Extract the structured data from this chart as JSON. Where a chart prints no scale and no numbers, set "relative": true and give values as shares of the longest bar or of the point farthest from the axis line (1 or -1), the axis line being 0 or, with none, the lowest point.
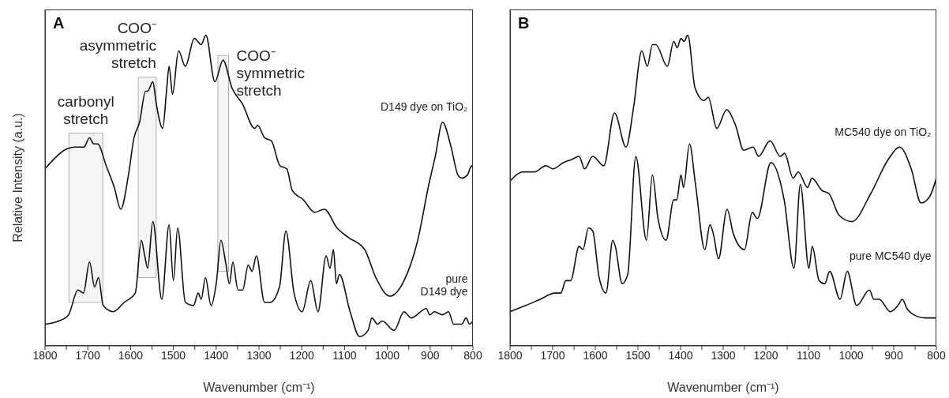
{
  "chart_data": [
    {
      "type": "line",
      "xlabel": "Wavenumber (cm⁻¹)",
      "ylabel": "Relative Intensity (a.u.)",
      "relative": true,
      "xlim": [
        1800,
        800
      ],
      "xticks": [
        1800,
        {
          "value": 1750,
          "label": null
        },
        1700,
        {
          "value": 1650,
          "label": null
        },
        1600,
        {
          "value": 1550,
          "label": null
        },
        1500,
        {
          "value": 1450,
          "label": null
        },
        1400,
        {
          "value": 1350,
          "label": null
        },
        1300,
        {
          "value": 1250,
          "label": null
        },
        1200,
        {
          "value": 1150,
          "label": null
        },
        1100,
        {
          "value": 1050,
          "label": null
        },
        1000,
        {
          "value": 950,
          "label": null
        },
        900,
        {
          "value": 850,
          "label": null
        },
        800
      ],
      "grid": false,
      "legend": false,
      "marker": "none",
      "line_style": "solid",
      "bands": [
        {
          "axis": "x",
          "from": 1744,
          "to": 1665,
          "label": "carbonyl\nstretch",
          "color": "#b0b0b0"
        },
        {
          "axis": "x",
          "from": 1582,
          "to": 1540,
          "label": "COO⁻\nasymmetric\nstretch",
          "color": "#b0b0b0"
        },
        {
          "axis": "x",
          "from": 1396,
          "to": 1371,
          "label": "COO⁻\nsymmetric\nstretch",
          "color": "#b0b0b0"
        }
      ],
      "annotations": [
        "A"
      ],
      "series": [
        {
          "name": "D149 dye on TiO₂",
          "color": "#111111",
          "x": [
            1800,
            1787,
            1755,
            1729,
            1709,
            1696,
            1686,
            1677,
            1657,
            1638,
            1623,
            1605,
            1592,
            1579,
            1565,
            1560,
            1548,
            1540,
            1525,
            1516,
            1510,
            1502,
            1488,
            1472,
            1451,
            1435,
            1424,
            1403,
            1384,
            1363,
            1339,
            1310,
            1303,
            1287,
            1271,
            1251,
            1235,
            1222,
            1196,
            1170,
            1147,
            1118,
            1092,
            1053,
            1027,
            994,
            961,
            929,
            903,
            888,
            871,
            851,
            835,
            826,
            813,
            803,
            800
          ],
          "values": [
            0.57,
            0.59,
            0.63,
            0.64,
            0.64,
            0.67,
            0.65,
            0.65,
            0.58,
            0.51,
            0.44,
            0.55,
            0.67,
            0.72,
            0.82,
            0.82,
            0.85,
            0.78,
            0.7,
            0.82,
            0.9,
            0.81,
            0.95,
            0.9,
            0.99,
            0.97,
            1.0,
            0.85,
            0.92,
            0.83,
            0.78,
            0.7,
            0.71,
            0.67,
            0.66,
            0.58,
            0.57,
            0.5,
            0.47,
            0.43,
            0.44,
            0.38,
            0.35,
            0.31,
            0.22,
            0.16,
            0.21,
            0.34,
            0.52,
            0.61,
            0.72,
            0.64,
            0.55,
            0.54,
            0.55,
            0.58,
            0.57
          ]
        },
        {
          "name": "pure\nD149 dye",
          "color": "#111111",
          "x": [
            1800,
            1768,
            1745,
            1723,
            1710,
            1696,
            1684,
            1675,
            1664,
            1641,
            1615,
            1589,
            1575,
            1567,
            1560,
            1548,
            1527,
            1510,
            1500,
            1490,
            1472,
            1453,
            1442,
            1435,
            1425,
            1412,
            1399,
            1389,
            1378,
            1369,
            1361,
            1349,
            1338,
            1325,
            1316,
            1306,
            1287,
            1274,
            1252,
            1237,
            1218,
            1199,
            1179,
            1162,
            1143,
            1134,
            1126,
            1119,
            1112,
            1087,
            1065,
            1045,
            1036,
            1023,
            1012,
            984,
            961,
            944,
            909,
            901,
            890,
            871,
            857,
            845,
            826,
            816,
            808,
            800
          ],
          "values": [
            0.07,
            0.08,
            0.1,
            0.18,
            0.17,
            0.27,
            0.19,
            0.22,
            0.13,
            0.11,
            0.14,
            0.17,
            0.34,
            0.29,
            0.25,
            0.4,
            0.15,
            0.39,
            0.21,
            0.38,
            0.14,
            0.13,
            0.17,
            0.15,
            0.22,
            0.13,
            0.21,
            0.34,
            0.27,
            0.2,
            0.27,
            0.18,
            0.18,
            0.26,
            0.24,
            0.29,
            0.14,
            0.14,
            0.19,
            0.37,
            0.17,
            0.11,
            0.21,
            0.11,
            0.29,
            0.25,
            0.31,
            0.2,
            0.23,
            0.11,
            0.03,
            0.05,
            0.09,
            0.07,
            0.08,
            0.05,
            0.11,
            0.09,
            0.12,
            0.1,
            0.11,
            0.1,
            0.11,
            0.07,
            0.07,
            0.09,
            0.07,
            0.08
          ]
        }
      ]
    },
    {
      "type": "line",
      "xlabel": "Wavenumber (cm⁻¹)",
      "relative": true,
      "xlim": [
        1800,
        800
      ],
      "xticks": [
        1800,
        {
          "value": 1750,
          "label": null
        },
        1700,
        {
          "value": 1650,
          "label": null
        },
        1600,
        {
          "value": 1550,
          "label": null
        },
        1500,
        {
          "value": 1450,
          "label": null
        },
        1400,
        {
          "value": 1350,
          "label": null
        },
        1300,
        {
          "value": 1250,
          "label": null
        },
        1200,
        {
          "value": 1150,
          "label": null
        },
        1100,
        {
          "value": 1050,
          "label": null
        },
        1000,
        {
          "value": 950,
          "label": null
        },
        900,
        {
          "value": 850,
          "label": null
        },
        800
      ],
      "grid": false,
      "legend": false,
      "marker": "none",
      "line_style": "solid",
      "annotations": [
        "B"
      ],
      "series": [
        {
          "name": "MC540 dye on TiO₂",
          "color": "#111111",
          "x": [
            1800,
            1770,
            1743,
            1716,
            1699,
            1675,
            1655,
            1638,
            1625,
            1606,
            1580,
            1555,
            1528,
            1510,
            1491,
            1478,
            1466,
            1458,
            1431,
            1416,
            1408,
            1399,
            1392,
            1383,
            1366,
            1345,
            1335,
            1315,
            1292,
            1271,
            1252,
            1230,
            1217,
            1190,
            1166,
            1156,
            1136,
            1124,
            1102,
            1092,
            1068,
            1052,
            1028,
            998,
            954,
            913,
            886,
            859,
            836,
            816,
            800
          ],
          "values": [
            0.53,
            0.56,
            0.56,
            0.58,
            0.57,
            0.59,
            0.6,
            0.61,
            0.57,
            0.61,
            0.58,
            0.75,
            0.64,
            0.77,
            0.95,
            0.9,
            0.97,
            0.97,
            0.9,
            0.98,
            0.96,
            0.99,
            0.98,
            1.0,
            0.83,
            0.79,
            0.8,
            0.7,
            0.76,
            0.71,
            0.63,
            0.64,
            0.61,
            0.66,
            0.61,
            0.62,
            0.54,
            0.56,
            0.51,
            0.54,
            0.5,
            0.49,
            0.42,
            0.4,
            0.49,
            0.6,
            0.64,
            0.57,
            0.46,
            0.48,
            0.54
          ]
        },
        {
          "name": "pure MC540 dye",
          "color": "#111111",
          "x": [
            1800,
            1763,
            1729,
            1695,
            1681,
            1669,
            1658,
            1638,
            1629,
            1616,
            1606,
            1591,
            1575,
            1559,
            1553,
            1537,
            1524,
            1505,
            1480,
            1466,
            1453,
            1434,
            1416,
            1409,
            1399,
            1393,
            1379,
            1365,
            1343,
            1331,
            1323,
            1311,
            1291,
            1276,
            1250,
            1232,
            1220,
            1188,
            1157,
            1134,
            1119,
            1099,
            1091,
            1075,
            1062,
            1050,
            1026,
            1009,
            987,
            957,
            947,
            934,
            908,
            890,
            880,
            869,
            853,
            826,
            800
          ],
          "values": [
            0.11,
            0.13,
            0.15,
            0.17,
            0.17,
            0.21,
            0.21,
            0.32,
            0.31,
            0.38,
            0.37,
            0.22,
            0.17,
            0.34,
            0.32,
            0.2,
            0.23,
            0.61,
            0.34,
            0.55,
            0.41,
            0.34,
            0.47,
            0.47,
            0.55,
            0.51,
            0.65,
            0.52,
            0.31,
            0.39,
            0.36,
            0.28,
            0.44,
            0.36,
            0.31,
            0.43,
            0.41,
            0.59,
            0.47,
            0.25,
            0.52,
            0.25,
            0.32,
            0.21,
            0.2,
            0.24,
            0.15,
            0.24,
            0.13,
            0.18,
            0.15,
            0.15,
            0.11,
            0.13,
            0.15,
            0.12,
            0.1,
            0.09,
            0.09
          ]
        }
      ]
    }
  ]
}
